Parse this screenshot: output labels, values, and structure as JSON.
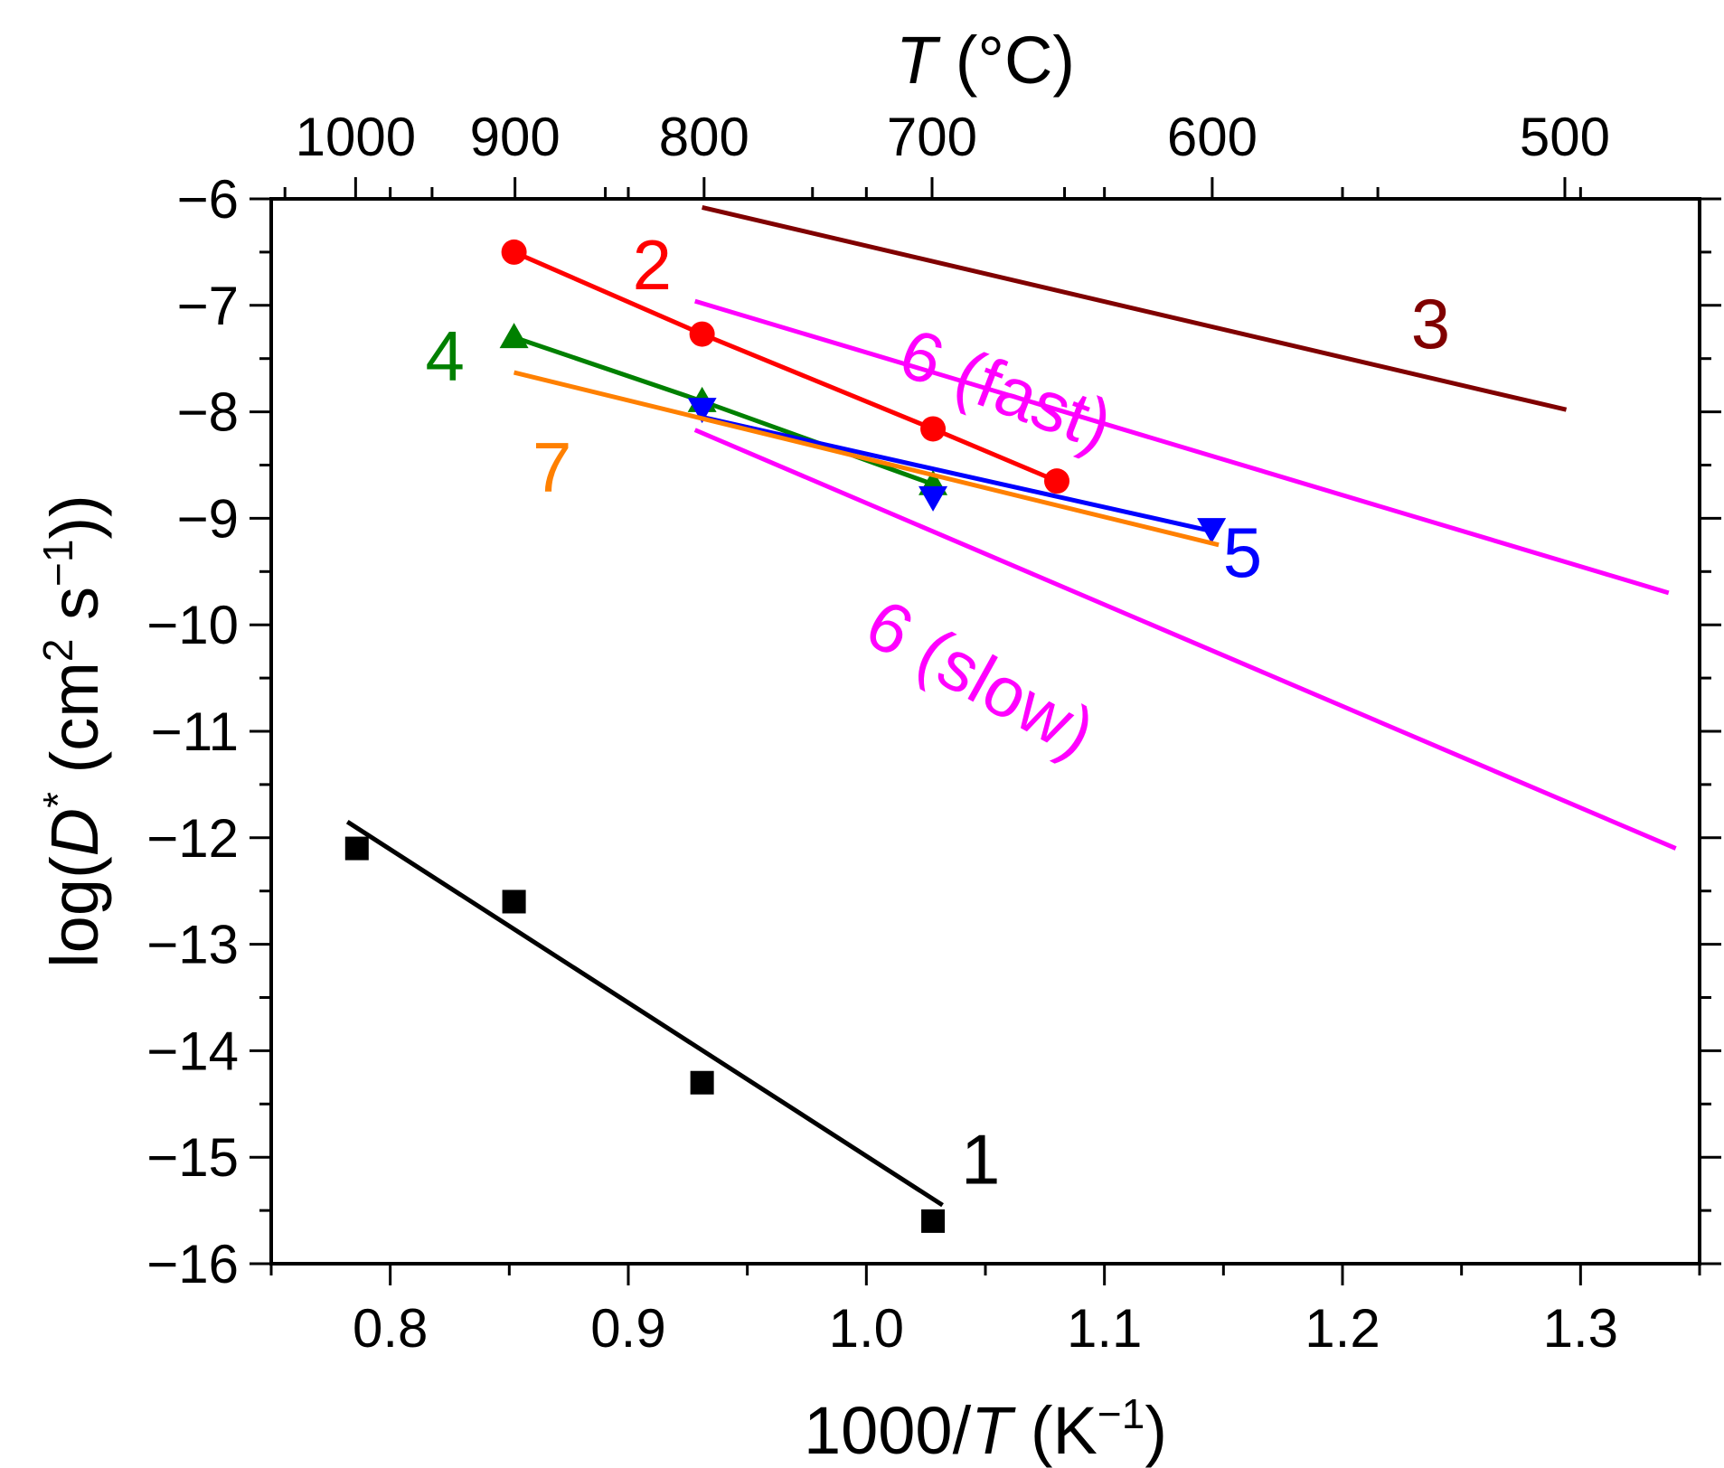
{
  "chart_data": {
    "type": "scatter",
    "xlabel": {
      "pre": "1000/",
      "italic": "T",
      "mid": " (K",
      "sup": "−1",
      "post": ")"
    },
    "ylabel": {
      "pre": "log(",
      "italic": "D",
      "sup1": "*",
      "mid": " (cm",
      "sup2": "2",
      "mid2": " s",
      "sup3": "−1",
      "post": "))"
    },
    "top_axis_title": {
      "italic": "T",
      "rest": " (°C)"
    },
    "xlim": [
      0.75,
      1.35
    ],
    "ylim": [
      -16,
      -6
    ],
    "x_ticks": [
      0.8,
      0.9,
      1.0,
      1.1,
      1.2,
      1.3
    ],
    "x_tick_labels": [
      "0.8",
      "0.9",
      "1.0",
      "1.1",
      "1.2",
      "1.3"
    ],
    "y_ticks": [
      -6,
      -7,
      -8,
      -9,
      -10,
      -11,
      -12,
      -13,
      -14,
      -15,
      -16
    ],
    "y_tick_labels": [
      "−6",
      "−7",
      "−8",
      "−9",
      "−10",
      "−11",
      "−12",
      "−13",
      "−14",
      "−15",
      "−16"
    ],
    "top_ticks_celsius": [
      1000,
      900,
      800,
      700,
      600,
      500
    ],
    "top_tick_labels": [
      "1000",
      "900",
      "800",
      "700",
      "600",
      "500"
    ],
    "grid": false,
    "series": [
      {
        "name": "1",
        "color": "#000000",
        "marker": "square",
        "points": [
          [
            0.786,
            -12.1
          ],
          [
            0.852,
            -12.6
          ],
          [
            0.931,
            -14.3
          ],
          [
            1.028,
            -15.6
          ]
        ],
        "fit": [
          [
            0.782,
            -11.85
          ],
          [
            1.032,
            -15.45
          ]
        ]
      },
      {
        "name": "2",
        "color": "#ff0000",
        "marker": "circle",
        "points": [
          [
            0.852,
            -6.5
          ],
          [
            0.931,
            -7.27
          ],
          [
            1.028,
            -8.16
          ],
          [
            1.08,
            -8.65
          ]
        ],
        "fit": [
          [
            0.852,
            -6.5
          ],
          [
            0.931,
            -7.27
          ],
          [
            1.028,
            -8.16
          ],
          [
            1.08,
            -8.65
          ]
        ]
      },
      {
        "name": "3",
        "color": "#800000",
        "marker": "none",
        "points": [],
        "fit": [
          [
            0.931,
            -6.08
          ],
          [
            1.294,
            -7.98
          ]
        ]
      },
      {
        "name": "4",
        "color": "#008000",
        "marker": "triangle-up",
        "points": [
          [
            0.852,
            -7.3
          ],
          [
            0.931,
            -7.9
          ],
          [
            1.028,
            -8.68
          ]
        ],
        "fit": [
          [
            0.852,
            -7.3
          ],
          [
            0.931,
            -7.9
          ],
          [
            1.028,
            -8.68
          ]
        ]
      },
      {
        "name": "5",
        "color": "#0000ff",
        "marker": "triangle-down",
        "points": [
          [
            0.931,
            -7.97
          ],
          [
            1.028,
            -8.8
          ],
          [
            1.145,
            -9.1
          ]
        ],
        "fit": [
          [
            0.931,
            -8.05
          ],
          [
            1.145,
            -9.12
          ]
        ]
      },
      {
        "name": "6 (fast)",
        "color": "#ff00ff",
        "marker": "none",
        "points": [],
        "fit": [
          [
            0.928,
            -6.96
          ],
          [
            1.337,
            -9.7
          ]
        ]
      },
      {
        "name": "6 (slow)",
        "color": "#ff00ff",
        "marker": "none",
        "points": [],
        "fit": [
          [
            0.928,
            -8.17
          ],
          [
            1.34,
            -12.1
          ]
        ]
      },
      {
        "name": "7",
        "color": "#ff8000",
        "marker": "none",
        "points": [],
        "fit": [
          [
            0.852,
            -7.63
          ],
          [
            1.148,
            -9.25
          ]
        ]
      }
    ],
    "annotations": [
      {
        "text": "1",
        "color": "#000000",
        "x": 1.048,
        "y": -15.25,
        "rotate": 0
      },
      {
        "text": "2",
        "color": "#ff0000",
        "x": 0.91,
        "y": -6.85,
        "rotate": 0
      },
      {
        "text": "3",
        "color": "#800000",
        "x": 1.237,
        "y": -7.4,
        "rotate": 0
      },
      {
        "text": "4",
        "color": "#008000",
        "x": 0.823,
        "y": -7.7,
        "rotate": 0
      },
      {
        "text": "5",
        "color": "#0000ff",
        "x": 1.158,
        "y": -9.55,
        "rotate": 0
      },
      {
        "text": "6 (fast)",
        "color": "#ff00ff",
        "x": 1.055,
        "y": -8.0,
        "rotate": 21
      },
      {
        "text": "6 (slow)",
        "color": "#ff00ff",
        "x": 1.043,
        "y": -10.7,
        "rotate": 29
      },
      {
        "text": "7",
        "color": "#ff8000",
        "x": 0.868,
        "y": -8.75,
        "rotate": 0
      }
    ]
  }
}
